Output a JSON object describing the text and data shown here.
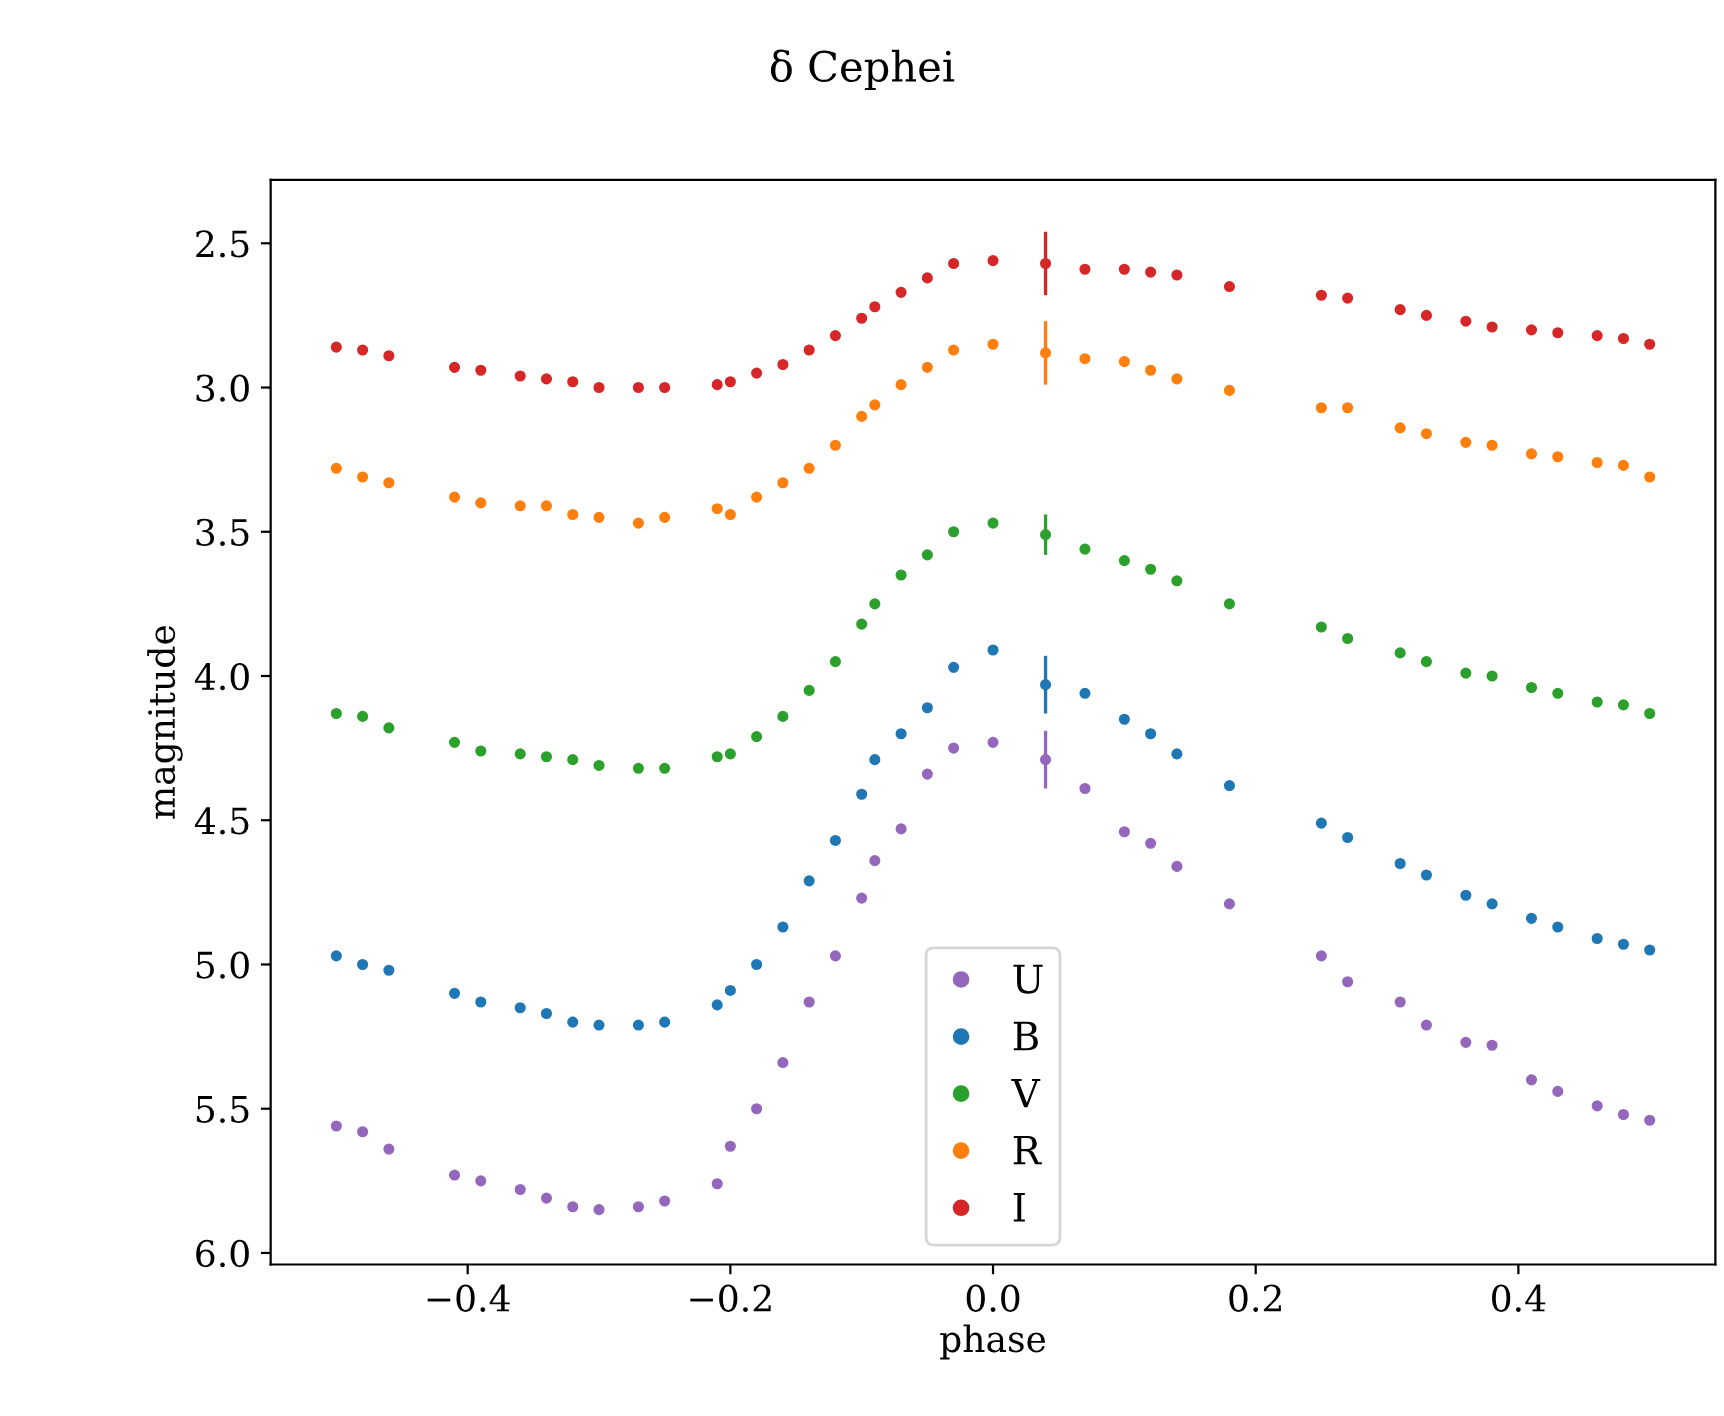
{
  "chart_data": {
    "type": "scatter",
    "title": "δ Cephei",
    "xlabel": "phase",
    "ylabel": "magnitude",
    "x": [
      -0.5,
      -0.48,
      -0.46,
      -0.41,
      -0.39,
      -0.36,
      -0.34,
      -0.32,
      -0.3,
      -0.27,
      -0.25,
      -0.21,
      -0.2,
      -0.18,
      -0.16,
      -0.14,
      -0.12,
      -0.1,
      -0.09,
      -0.07,
      -0.05,
      -0.03,
      0.0,
      0.04,
      0.07,
      0.1,
      0.12,
      0.14,
      0.18,
      0.25,
      0.27,
      0.31,
      0.33,
      0.36,
      0.38,
      0.41,
      0.43,
      0.46,
      0.48,
      0.5
    ],
    "series": [
      {
        "name": "U",
        "color": "#9467bd",
        "values": [
          5.56,
          5.58,
          5.64,
          5.73,
          5.75,
          5.78,
          5.81,
          5.84,
          5.85,
          5.84,
          5.82,
          5.76,
          5.63,
          5.5,
          5.34,
          5.13,
          4.97,
          4.77,
          4.64,
          4.53,
          4.34,
          4.25,
          4.23,
          4.29,
          4.39,
          4.54,
          4.58,
          4.66,
          4.79,
          4.97,
          5.06,
          5.13,
          5.21,
          5.27,
          5.28,
          5.4,
          5.44,
          5.49,
          5.52,
          5.54
        ],
        "errors": [
          null,
          null,
          null,
          null,
          null,
          null,
          null,
          null,
          null,
          null,
          null,
          null,
          null,
          null,
          null,
          null,
          null,
          null,
          null,
          null,
          null,
          null,
          null,
          0.1,
          null,
          null,
          null,
          null,
          null,
          null,
          null,
          null,
          null,
          null,
          null,
          null,
          null,
          null,
          null,
          null
        ]
      },
      {
        "name": "B",
        "color": "#1f77b4",
        "values": [
          4.97,
          5.0,
          5.02,
          5.1,
          5.13,
          5.15,
          5.17,
          5.2,
          5.21,
          5.21,
          5.2,
          5.14,
          5.09,
          5.0,
          4.87,
          4.71,
          4.57,
          4.41,
          4.29,
          4.2,
          4.11,
          3.97,
          3.91,
          4.03,
          4.06,
          4.15,
          4.2,
          4.27,
          4.38,
          4.51,
          4.56,
          4.65,
          4.69,
          4.76,
          4.79,
          4.84,
          4.87,
          4.91,
          4.93,
          4.95
        ],
        "errors": [
          null,
          null,
          null,
          null,
          null,
          null,
          null,
          null,
          null,
          null,
          null,
          null,
          null,
          null,
          null,
          null,
          null,
          null,
          null,
          null,
          null,
          null,
          null,
          0.1,
          null,
          null,
          null,
          null,
          null,
          null,
          null,
          null,
          null,
          null,
          null,
          null,
          null,
          null,
          null,
          null
        ]
      },
      {
        "name": "V",
        "color": "#2ca02c",
        "values": [
          4.13,
          4.14,
          4.18,
          4.23,
          4.26,
          4.27,
          4.28,
          4.29,
          4.31,
          4.32,
          4.32,
          4.28,
          4.27,
          4.21,
          4.14,
          4.05,
          3.95,
          3.82,
          3.75,
          3.65,
          3.58,
          3.5,
          3.47,
          3.51,
          3.56,
          3.6,
          3.63,
          3.67,
          3.75,
          3.83,
          3.87,
          3.92,
          3.95,
          3.99,
          4.0,
          4.04,
          4.06,
          4.09,
          4.1,
          4.13
        ],
        "errors": [
          null,
          null,
          null,
          null,
          null,
          null,
          null,
          null,
          null,
          null,
          null,
          null,
          null,
          null,
          null,
          null,
          null,
          null,
          null,
          null,
          null,
          null,
          null,
          0.07,
          null,
          null,
          null,
          null,
          null,
          null,
          null,
          null,
          null,
          null,
          null,
          null,
          null,
          null,
          null,
          null
        ]
      },
      {
        "name": "R",
        "color": "#ff7f0e",
        "values": [
          3.28,
          3.31,
          3.33,
          3.38,
          3.4,
          3.41,
          3.41,
          3.44,
          3.45,
          3.47,
          3.45,
          3.42,
          3.44,
          3.38,
          3.33,
          3.28,
          3.2,
          3.1,
          3.06,
          2.99,
          2.93,
          2.87,
          2.85,
          2.88,
          2.9,
          2.91,
          2.94,
          2.97,
          3.01,
          3.07,
          3.07,
          3.14,
          3.16,
          3.19,
          3.2,
          3.23,
          3.24,
          3.26,
          3.27,
          3.31
        ],
        "errors": [
          null,
          null,
          null,
          null,
          null,
          null,
          null,
          null,
          null,
          null,
          null,
          null,
          null,
          null,
          null,
          null,
          null,
          null,
          null,
          null,
          null,
          null,
          null,
          0.11,
          null,
          null,
          null,
          null,
          null,
          null,
          null,
          null,
          null,
          null,
          null,
          null,
          null,
          null,
          null,
          null
        ]
      },
      {
        "name": "I",
        "color": "#d62728",
        "values": [
          2.86,
          2.87,
          2.89,
          2.93,
          2.94,
          2.96,
          2.97,
          2.98,
          3.0,
          3.0,
          3.0,
          2.99,
          2.98,
          2.95,
          2.92,
          2.87,
          2.82,
          2.76,
          2.72,
          2.67,
          2.62,
          2.57,
          2.56,
          2.57,
          2.59,
          2.59,
          2.6,
          2.61,
          2.65,
          2.68,
          2.69,
          2.73,
          2.75,
          2.77,
          2.79,
          2.8,
          2.81,
          2.82,
          2.83,
          2.85
        ],
        "errors": [
          null,
          null,
          null,
          null,
          null,
          null,
          null,
          null,
          null,
          null,
          null,
          null,
          null,
          null,
          null,
          null,
          null,
          null,
          null,
          null,
          null,
          null,
          null,
          0.11,
          null,
          null,
          null,
          null,
          null,
          null,
          null,
          null,
          null,
          null,
          null,
          null,
          null,
          null,
          null,
          null
        ]
      }
    ],
    "xlim": [
      -0.55,
      0.55
    ],
    "ylim": [
      6.04,
      2.28
    ],
    "xticks": [
      {
        "value": -0.4,
        "label": "−0.4"
      },
      {
        "value": -0.2,
        "label": "−0.2"
      },
      {
        "value": 0.0,
        "label": "0.0"
      },
      {
        "value": 0.2,
        "label": "0.2"
      },
      {
        "value": 0.4,
        "label": "0.4"
      }
    ],
    "yticks": [
      2.5,
      {
        "value": 3,
        "label": "3.0"
      },
      3.5,
      {
        "value": 4,
        "label": "4.0"
      },
      4.5,
      {
        "value": 5,
        "label": "5.0"
      },
      5.5,
      {
        "value": 6,
        "label": "6.0"
      }
    ],
    "marker": "circle",
    "legend": "bottom",
    "grid": false
  }
}
